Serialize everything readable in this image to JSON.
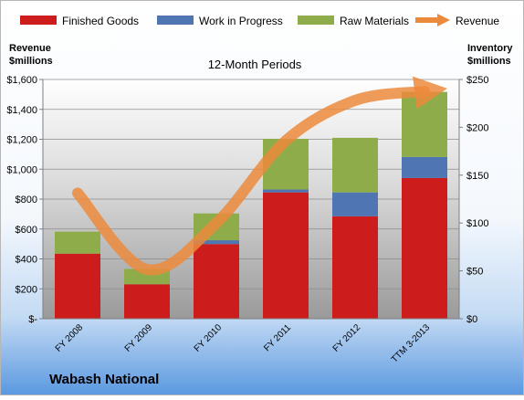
{
  "chart_data": {
    "type": "bar",
    "stacked": true,
    "company": "Wabash National",
    "subtitle": "12-Month Periods",
    "y_left_label": [
      "Revenue",
      "$millions"
    ],
    "y_right_label": [
      "Inventory",
      "$millions"
    ],
    "categories": [
      "FY 2008",
      "FY 2009",
      "FY 2010",
      "FY 2011",
      "FY 2012",
      "TTM 3-2013"
    ],
    "series": [
      {
        "name": "Finished Goods",
        "axis": "right",
        "color": "#cc1c1c",
        "values": [
          68,
          36,
          78,
          132,
          107,
          147
        ]
      },
      {
        "name": "Work in Progress",
        "axis": "right",
        "color": "#4f76b2",
        "values": [
          0,
          0,
          4,
          3,
          25,
          22
        ]
      },
      {
        "name": "Raw Materials",
        "axis": "right",
        "color": "#8ead4a",
        "values": [
          23,
          16,
          28,
          53,
          57,
          68
        ]
      }
    ],
    "line_series": {
      "name": "Revenue",
      "axis": "left",
      "color": "#ec8a3c",
      "values": [
        840,
        330,
        640,
        1190,
        1460,
        1520
      ]
    },
    "y_left": {
      "min": 0,
      "max": 1600,
      "step": 200,
      "tick_labels": [
        "$-",
        "$200",
        "$400",
        "$600",
        "$800",
        "$1,000",
        "$1,200",
        "$1,400",
        "$1,600"
      ]
    },
    "y_right": {
      "min": 0,
      "max": 250,
      "step": 50,
      "tick_labels": [
        "$0",
        "$50",
        "$100",
        "$150",
        "$200",
        "$250"
      ]
    },
    "legend_position": "top",
    "grid": true
  }
}
